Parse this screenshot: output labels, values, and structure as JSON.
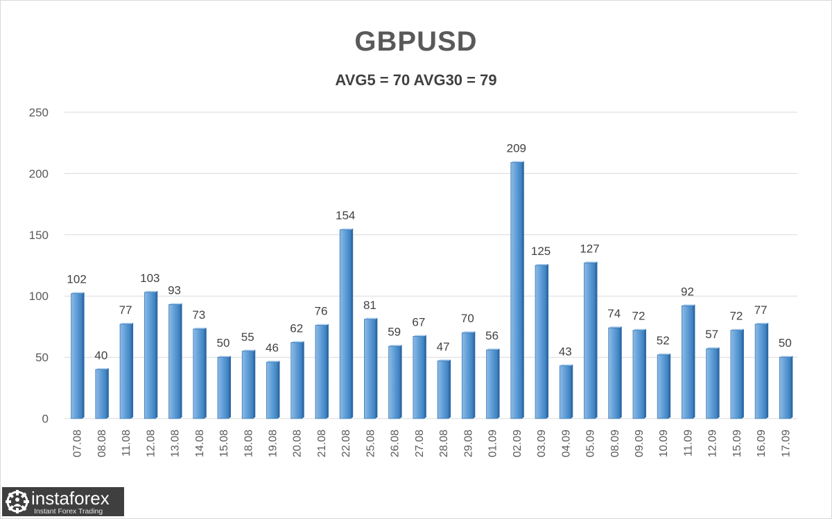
{
  "chart_data": {
    "type": "bar",
    "title": "GBPUSD",
    "subtitle": "AVG5 = 70 AVG30 = 79",
    "xlabel": "",
    "ylabel": "",
    "ylim": [
      0,
      250
    ],
    "yticks": [
      0,
      50,
      100,
      150,
      200,
      250
    ],
    "grid": true,
    "categories": [
      "07.08",
      "08.08",
      "11.08",
      "12.08",
      "13.08",
      "14.08",
      "15.08",
      "18.08",
      "19.08",
      "20.08",
      "21.08",
      "22.08",
      "25.08",
      "26.08",
      "27.08",
      "28.08",
      "29.08",
      "01.09",
      "02.09",
      "03.09",
      "04.09",
      "05.09",
      "08.09",
      "09.09",
      "10.09",
      "11.09",
      "12.09",
      "15.09",
      "16.09",
      "17.09"
    ],
    "values": [
      102,
      40,
      77,
      103,
      93,
      73,
      50,
      55,
      46,
      62,
      76,
      154,
      81,
      59,
      67,
      47,
      70,
      56,
      209,
      125,
      43,
      127,
      74,
      72,
      52,
      92,
      57,
      72,
      77,
      50
    ],
    "bar_color": "#5b9bd5"
  },
  "watermark": {
    "brand": "instaforex",
    "tagline": "Instant Forex Trading"
  }
}
